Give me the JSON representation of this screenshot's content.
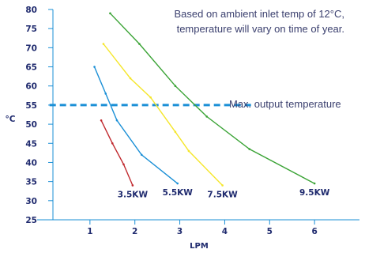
{
  "chart_data": {
    "type": "line",
    "xlabel": "LPM",
    "ylabel": "°C",
    "xlim": [
      0,
      7
    ],
    "ylim": [
      25,
      80
    ],
    "x_ticks": [
      1,
      2,
      3,
      4,
      5,
      6
    ],
    "y_ticks": [
      25,
      30,
      35,
      40,
      45,
      50,
      55,
      60,
      65,
      70,
      75,
      80
    ],
    "grid": false,
    "note_lines": [
      "Based on ambient inlet temp of 12°C,",
      "temperature will vary on time of year."
    ],
    "reference_line": {
      "label": "Max. output temperature",
      "y": 55,
      "x_range": [
        0.1,
        4.6
      ],
      "color": "#1a8fd6"
    },
    "series": [
      {
        "name": "3.5KW",
        "color": "#c0282d",
        "points": [
          [
            1.25,
            51
          ],
          [
            1.5,
            45
          ],
          [
            1.75,
            39.5
          ],
          [
            1.95,
            34
          ]
        ]
      },
      {
        "name": "5.5KW",
        "color": "#1a8fd6",
        "points": [
          [
            1.1,
            65
          ],
          [
            1.35,
            58
          ],
          [
            1.6,
            51
          ],
          [
            2.15,
            42
          ],
          [
            2.95,
            34.5
          ]
        ]
      },
      {
        "name": "7.5KW",
        "color": "#f5e62a",
        "points": [
          [
            1.3,
            71
          ],
          [
            1.9,
            62
          ],
          [
            2.35,
            57
          ],
          [
            2.9,
            48
          ],
          [
            3.2,
            43
          ],
          [
            3.95,
            34
          ]
        ]
      },
      {
        "name": "9.5KW",
        "color": "#3aa335",
        "points": [
          [
            1.45,
            79
          ],
          [
            2.1,
            71
          ],
          [
            2.9,
            60
          ],
          [
            3.6,
            52
          ],
          [
            4.55,
            43.5
          ],
          [
            6.0,
            34.5
          ]
        ]
      }
    ]
  }
}
